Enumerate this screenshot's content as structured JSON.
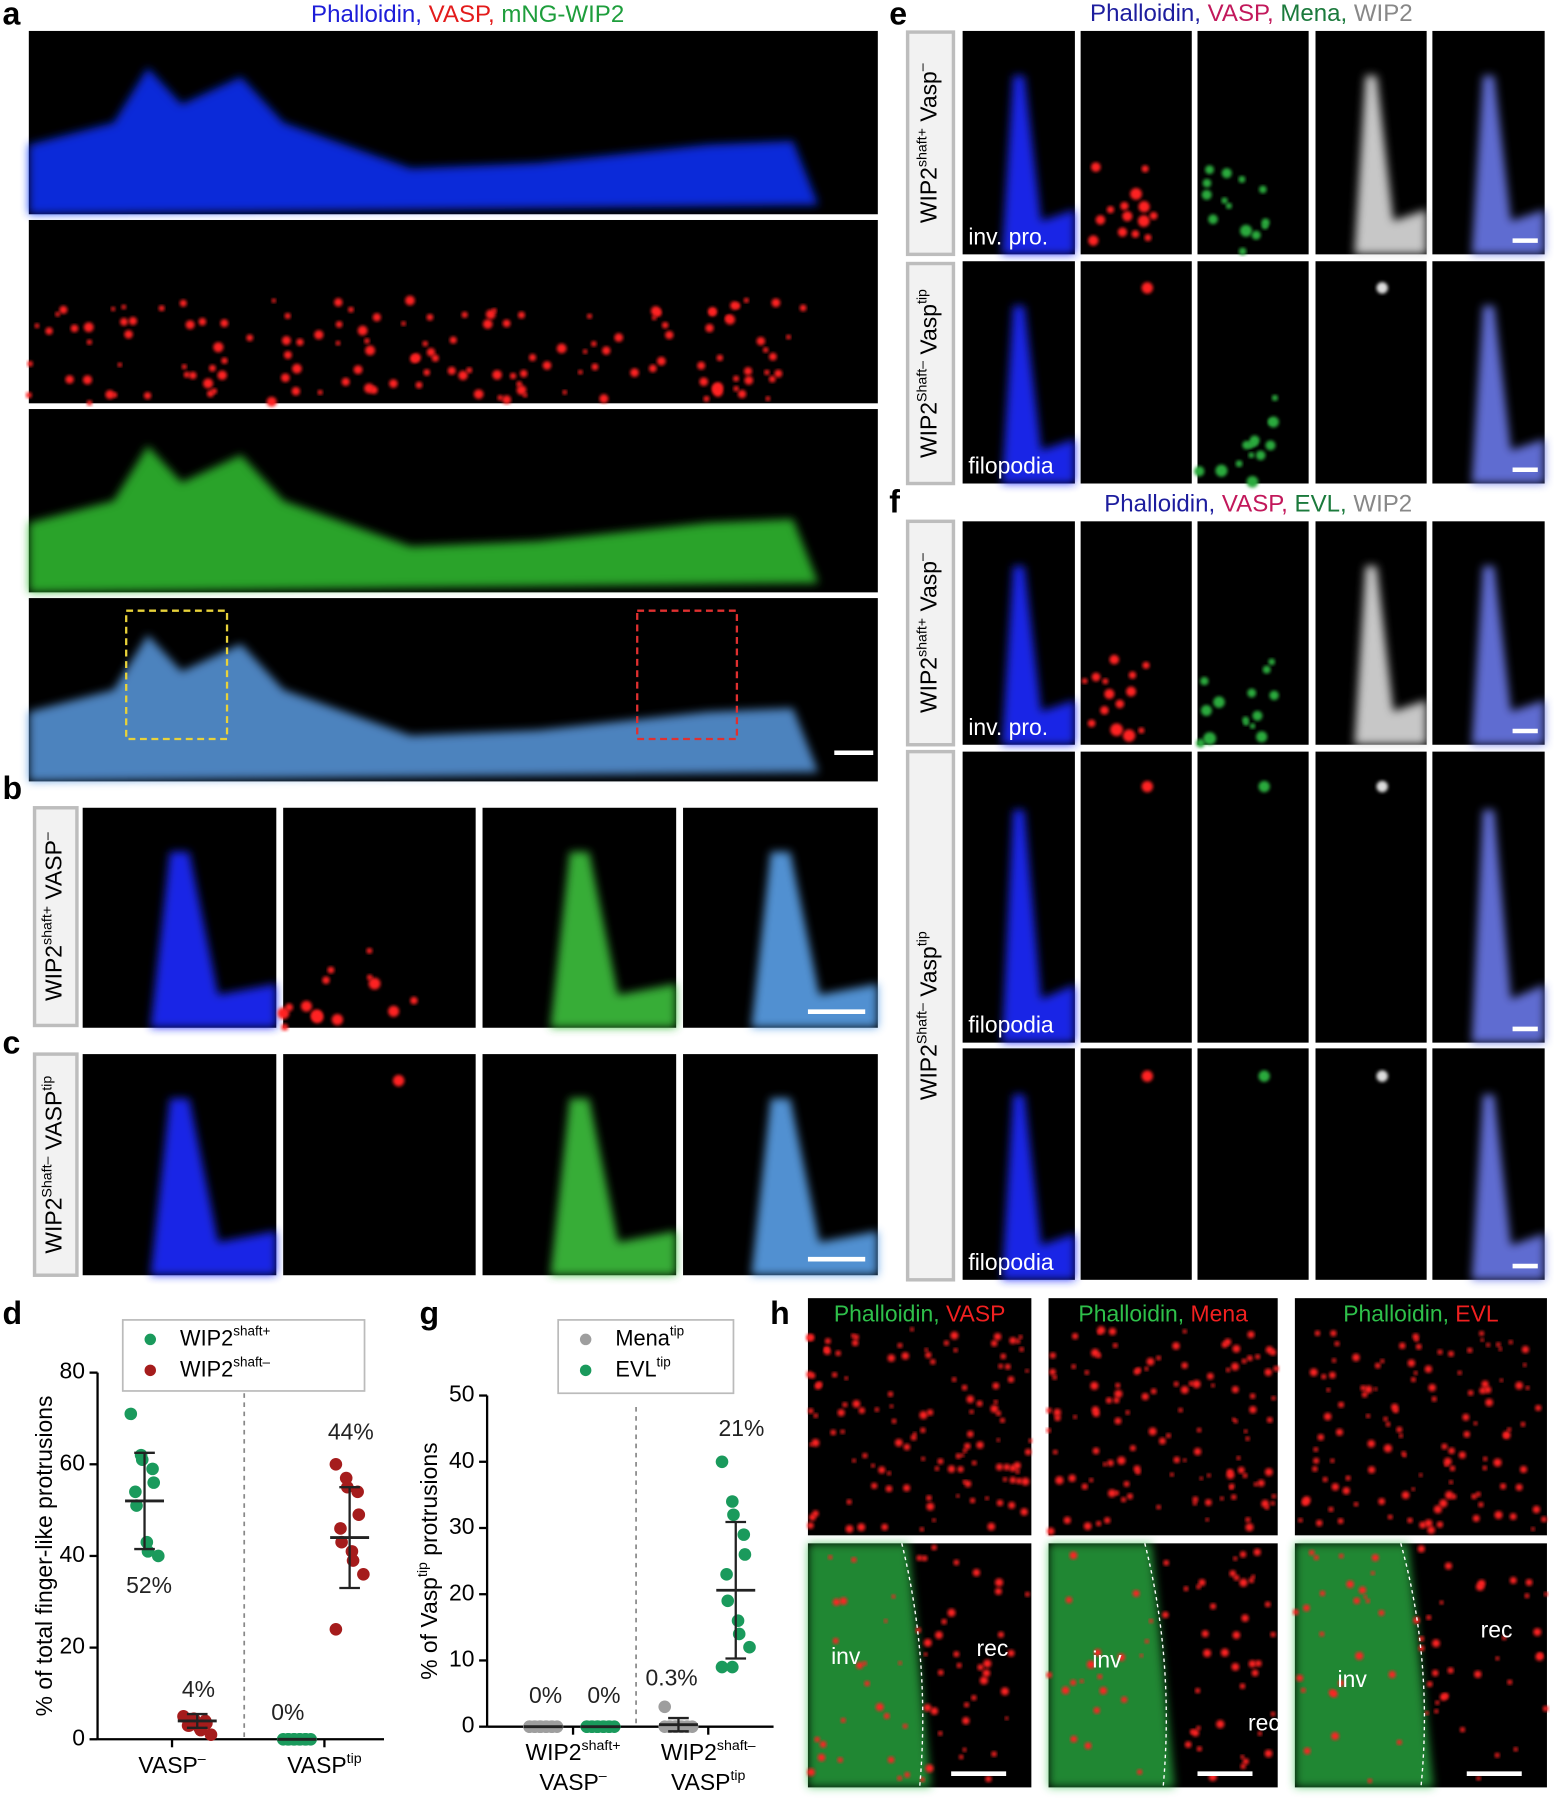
{
  "figure": {
    "letters": [
      "a",
      "b",
      "c",
      "d",
      "e",
      "f",
      "g",
      "h"
    ],
    "a": {
      "title": [
        {
          "text": "Phalloidin,",
          "color": "#1d1dd8"
        },
        {
          "text": " VASP,",
          "color": "#e31b1b"
        },
        {
          "text": " mNG-WIP2",
          "color": "#1e9e3c"
        }
      ]
    },
    "b": {
      "row_label": [
        {
          "text": "WIP2"
        },
        {
          "text": "shaft+",
          "sup": true
        },
        {
          "text": " VASP"
        },
        {
          "text": "–",
          "sup": true
        }
      ]
    },
    "c": {
      "row_label": [
        {
          "text": "WIP2"
        },
        {
          "text": "Shaft–",
          "sup": true
        },
        {
          "text": " VASP"
        },
        {
          "text": "tip",
          "sup": true
        }
      ]
    },
    "e": {
      "title": [
        {
          "text": "Phalloidin,",
          "color": "#1d1d9e"
        },
        {
          "text": " VASP,",
          "color": "#c2185b"
        },
        {
          "text": " Mena,",
          "color": "#1b7a3c"
        },
        {
          "text": " WIP2",
          "color": "#888888"
        }
      ],
      "rows": [
        {
          "label": [
            {
              "text": "WIP2"
            },
            {
              "text": "shaft+",
              "sup": true
            },
            {
              "text": " Vasp"
            },
            {
              "text": "–",
              "sup": true
            }
          ],
          "tags": [
            "inv. pro."
          ]
        },
        {
          "label": [
            {
              "text": "WIP2"
            },
            {
              "text": "Shaft–",
              "sup": true
            },
            {
              "text": " Vasp"
            },
            {
              "text": "tip",
              "sup": true
            }
          ],
          "tags": [
            "filopodia"
          ]
        }
      ]
    },
    "f": {
      "title": [
        {
          "text": "Phalloidin,",
          "color": "#1d1d9e"
        },
        {
          "text": " VASP,",
          "color": "#c2185b"
        },
        {
          "text": " EVL,",
          "color": "#1b7a3c"
        },
        {
          "text": " WIP2",
          "color": "#888888"
        }
      ],
      "rows": [
        {
          "label": [
            {
              "text": "WIP2"
            },
            {
              "text": "shaft+",
              "sup": true
            },
            {
              "text": " Vasp"
            },
            {
              "text": "–",
              "sup": true
            }
          ],
          "tags": [
            "inv. pro."
          ]
        },
        {
          "label": [
            {
              "text": "WIP2"
            },
            {
              "text": "Shaft–",
              "sup": true
            },
            {
              "text": " Vasp"
            },
            {
              "text": "tip",
              "sup": true
            }
          ],
          "tags": [
            "filopodia",
            "filopodia"
          ]
        }
      ]
    },
    "h": {
      "panels": [
        {
          "title": [
            {
              "text": "Phalloidin,",
              "color": "#2ec04a"
            },
            {
              "text": " VASP",
              "color": "#f02020"
            }
          ],
          "labels": [
            "inv",
            "rec"
          ]
        },
        {
          "title": [
            {
              "text": "Phalloidin,",
              "color": "#2ec04a"
            },
            {
              "text": " Mena",
              "color": "#f02020"
            }
          ],
          "labels": [
            "inv",
            "rec"
          ]
        },
        {
          "title": [
            {
              "text": "Phalloidin,",
              "color": "#2ec04a"
            },
            {
              "text": " EVL",
              "color": "#f02020"
            }
          ],
          "labels": [
            "inv",
            "rec"
          ]
        }
      ]
    }
  },
  "chart_data": [
    {
      "type": "dotplot",
      "ylabel": [
        {
          "text": "% of total finger-like protrusions"
        }
      ],
      "categories": [
        [
          [
            {
              "text": "VASP"
            },
            {
              "text": "–",
              "sup": true
            }
          ]
        ],
        [
          [
            {
              "text": "VASP"
            },
            {
              "text": "tip",
              "sup": true
            }
          ]
        ]
      ],
      "ylim": [
        0,
        80
      ],
      "yticks": [
        0,
        20,
        40,
        60,
        80
      ],
      "grid": false,
      "series": [
        {
          "name": [
            {
              "text": "WIP2"
            },
            {
              "text": "shaft+",
              "sup": true
            }
          ],
          "color": "#1a9a5c",
          "values": [
            [
              71,
              62,
              61,
              59,
              56,
              54,
              51,
              43,
              41,
              40
            ],
            [
              0,
              0,
              0,
              0,
              0,
              0,
              0,
              0,
              0,
              0
            ]
          ],
          "means": [
            52,
            0
          ],
          "errors": [
            10.5,
            0
          ],
          "mean_labels": [
            "52%",
            "0%"
          ]
        },
        {
          "name": [
            {
              "text": "WIP2"
            },
            {
              "text": "shaft–",
              "sup": true
            }
          ],
          "color": "#a51c1c",
          "values": [
            [
              5,
              4.5,
              4,
              4,
              3.5,
              3,
              3,
              2.5,
              2,
              1
            ],
            [
              60,
              57,
              55,
              54,
              49,
              46,
              43,
              41,
              39,
              36,
              24
            ]
          ],
          "means": [
            4,
            44
          ],
          "errors": [
            1.5,
            11
          ],
          "mean_labels": [
            "4%",
            "44%"
          ]
        }
      ]
    },
    {
      "type": "dotplot",
      "ylabel": [
        {
          "text": "% of Vasp"
        },
        {
          "text": "tip",
          "sup": true
        },
        {
          "text": " protrusions"
        }
      ],
      "categories": [
        [
          [
            {
              "text": "WIP2"
            },
            {
              "text": "shaft+",
              "sup": true
            }
          ],
          [
            {
              "text": "VASP"
            },
            {
              "text": "–",
              "sup": true
            }
          ]
        ],
        [
          [
            {
              "text": "WIP2"
            },
            {
              "text": "shaft–",
              "sup": true
            }
          ],
          [
            {
              "text": "VASP"
            },
            {
              "text": "tip",
              "sup": true
            }
          ]
        ]
      ],
      "ylim": [
        0,
        50
      ],
      "yticks": [
        0,
        10,
        20,
        30,
        40,
        50
      ],
      "grid": false,
      "series": [
        {
          "name": [
            {
              "text": "Mena"
            },
            {
              "text": "tip",
              "sup": true
            }
          ],
          "color": "#9e9e9e",
          "values": [
            [
              0,
              0,
              0,
              0,
              0,
              0,
              0,
              0,
              0,
              0,
              0,
              0
            ],
            [
              3,
              0,
              0,
              0,
              0,
              0,
              0,
              0,
              0,
              0,
              0,
              0
            ]
          ],
          "means": [
            0,
            0.3
          ],
          "errors": [
            0,
            1
          ],
          "mean_labels": [
            "0%",
            "0.3%"
          ]
        },
        {
          "name": [
            {
              "text": "EVL"
            },
            {
              "text": "tip",
              "sup": true
            }
          ],
          "color": "#1a9a5c",
          "values": [
            [
              0,
              0,
              0,
              0,
              0,
              0,
              0,
              0,
              0,
              0,
              0,
              0
            ],
            [
              40,
              34,
              32,
              29,
              26,
              23,
              19,
              16,
              14,
              12,
              9,
              9
            ]
          ],
          "means": [
            0,
            20.6
          ],
          "errors": [
            0,
            10.3
          ],
          "mean_labels": [
            "0%",
            "21%"
          ]
        }
      ]
    }
  ]
}
